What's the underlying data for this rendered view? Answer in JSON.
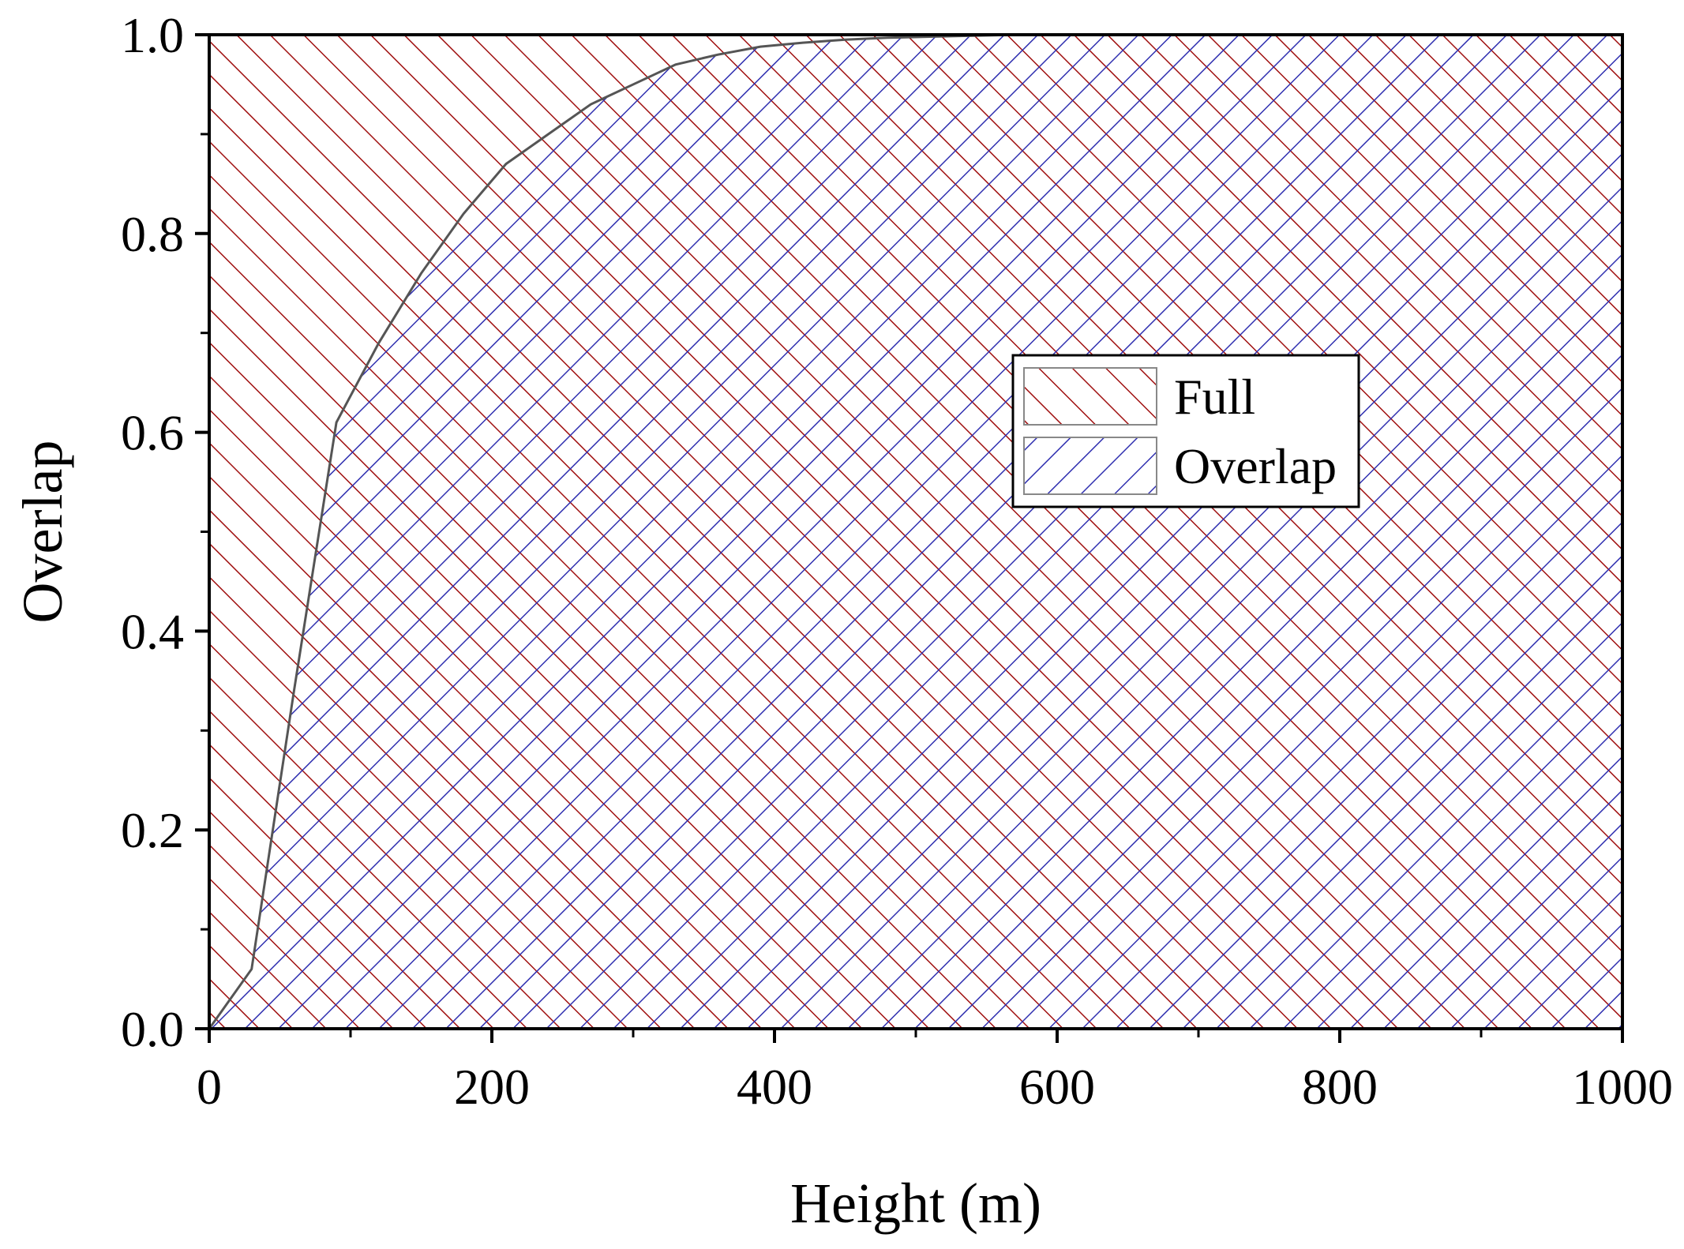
{
  "chart_data": {
    "type": "area",
    "title": "",
    "xlabel": "Height (m)",
    "ylabel": "Overlap",
    "xlim": [
      0,
      1000
    ],
    "ylim": [
      0,
      1.0
    ],
    "xticks": [
      0,
      200,
      400,
      600,
      800,
      1000
    ],
    "xtick_labels": [
      "0",
      "200",
      "400",
      "600",
      "800",
      "1000"
    ],
    "yticks": [
      0.0,
      0.2,
      0.4,
      0.6,
      0.8,
      1.0
    ],
    "ytick_labels": [
      "0.0",
      "0.2",
      "0.4",
      "0.6",
      "0.8",
      "1.0"
    ],
    "grid": false,
    "legend_position": "center-right",
    "series": [
      {
        "name": "Full",
        "color": "#a01010",
        "pattern": "diagonal-backslash",
        "x": [
          0,
          1000
        ],
        "y": [
          1.0,
          1.0
        ]
      },
      {
        "name": "Overlap",
        "color": "#3030b0",
        "pattern": "diagonal-slash",
        "x": [
          0,
          30,
          60,
          90,
          120,
          150,
          180,
          210,
          240,
          270,
          300,
          330,
          360,
          390,
          420,
          450,
          480,
          510,
          540,
          570,
          600,
          700,
          800,
          900,
          1000
        ],
        "y": [
          0.0,
          0.06,
          0.34,
          0.61,
          0.69,
          0.76,
          0.82,
          0.87,
          0.9,
          0.93,
          0.95,
          0.97,
          0.98,
          0.988,
          0.992,
          0.995,
          0.997,
          0.998,
          0.999,
          1.0,
          1.0,
          1.0,
          1.0,
          1.0,
          1.0
        ]
      }
    ],
    "boundary_line_color": "#555555"
  }
}
